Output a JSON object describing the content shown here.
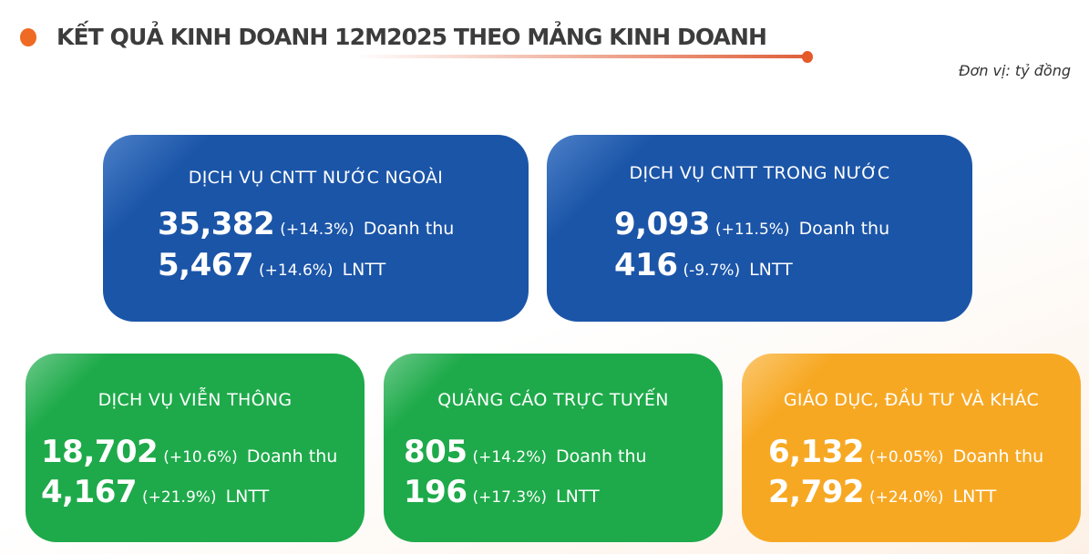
{
  "header": {
    "title": "KẾT QUẢ KINH DOANH 12M2025 THEO MẢNG KINH DOANH",
    "unit": "Đơn vị: tỷ đồng"
  },
  "colors": {
    "blue": "#1b55a8",
    "green": "#1eaa4a",
    "orange": "#f7a823",
    "accent": "#ef6a22"
  },
  "cards": [
    {
      "title": "DỊCH VỤ CNTT NƯỚC NGOÀI",
      "revenue": "35,382",
      "revenue_growth": "(+14.3%)",
      "revenue_label": "Doanh thu",
      "profit": "5,467",
      "profit_growth": "(+14.6%)",
      "profit_label": "LNTT"
    },
    {
      "title": "DỊCH VỤ CNTT TRONG NƯỚC",
      "revenue": "9,093",
      "revenue_growth": "(+11.5%)",
      "revenue_label": "Doanh thu",
      "profit": "416",
      "profit_growth": "(-9.7%)",
      "profit_label": "LNTT"
    },
    {
      "title": "DỊCH VỤ VIỄN THÔNG",
      "revenue": "18,702",
      "revenue_growth": "(+10.6%)",
      "revenue_label": "Doanh thu",
      "profit": "4,167",
      "profit_growth": "(+21.9%)",
      "profit_label": "LNTT"
    },
    {
      "title": "QUẢNG CÁO TRỰC TUYẾN",
      "revenue": "805",
      "revenue_growth": "(+14.2%)",
      "revenue_label": "Doanh thu",
      "profit": "196",
      "profit_growth": "(+17.3%)",
      "profit_label": "LNTT"
    },
    {
      "title": "GIÁO DỤC, ĐẦU TƯ VÀ KHÁC",
      "revenue": "6,132",
      "revenue_growth": "(+0.05%)",
      "revenue_label": "Doanh thu",
      "profit": "2,792",
      "profit_growth": "(+24.0%)",
      "profit_label": "LNTT"
    }
  ]
}
